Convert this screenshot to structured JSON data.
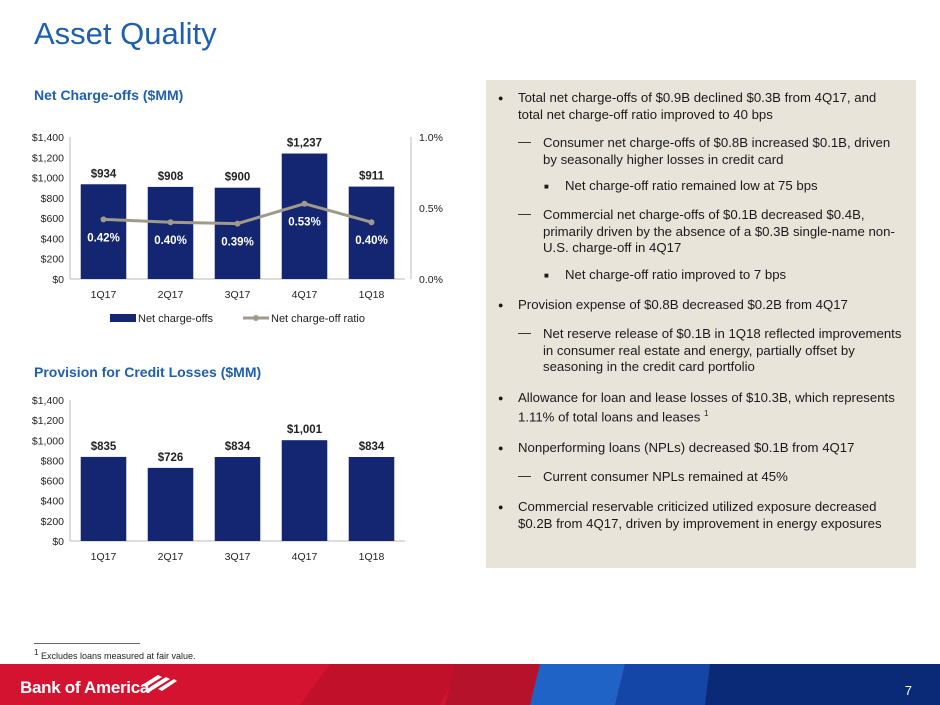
{
  "title": "Asset Quality",
  "chart1_title": "Net Charge-offs ($MM)",
  "chart2_title": "Provision for Credit Losses ($MM)",
  "colors": {
    "bar": "#142672",
    "line": "#a09a8c",
    "title": "#1f5fae",
    "panel": "#e9e4da"
  },
  "chart_data": [
    {
      "type": "bar",
      "title": "Net Charge-offs ($MM)",
      "categories": [
        "1Q17",
        "2Q17",
        "3Q17",
        "4Q17",
        "1Q18"
      ],
      "series": [
        {
          "name": "Net charge-offs",
          "values": [
            934,
            908,
            900,
            1237,
            911
          ],
          "labels": [
            "$934",
            "$908",
            "$900",
            "$1,237",
            "$911"
          ]
        },
        {
          "name": "Net charge-off ratio",
          "type": "line",
          "axis": "right",
          "values": [
            0.42,
            0.4,
            0.39,
            0.53,
            0.4
          ],
          "labels": [
            "0.42%",
            "0.40%",
            "0.39%",
            "0.53%",
            "0.40%"
          ]
        }
      ],
      "ylim": [
        0,
        1400
      ],
      "yticks": [
        "$0",
        "$200",
        "$400",
        "$600",
        "$800",
        "$1,000",
        "$1,200",
        "$1,400"
      ],
      "y2lim": [
        0,
        1.0
      ],
      "y2ticks": [
        "0.0%",
        "0.5%",
        "1.0%"
      ],
      "legend": "bottom"
    },
    {
      "type": "bar",
      "title": "Provision for Credit Losses ($MM)",
      "categories": [
        "1Q17",
        "2Q17",
        "3Q17",
        "4Q17",
        "1Q18"
      ],
      "series": [
        {
          "values": [
            835,
            726,
            834,
            1001,
            834
          ],
          "labels": [
            "$835",
            "$726",
            "$834",
            "$1,001",
            "$834"
          ]
        }
      ],
      "ylim": [
        0,
        1400
      ],
      "yticks": [
        "$0",
        "$200",
        "$400",
        "$600",
        "$800",
        "$1,000",
        "$1,200",
        "$1,400"
      ]
    }
  ],
  "bullets": [
    {
      "level": 1,
      "text": "Total net charge-offs of $0.9B declined $0.3B from 4Q17, and total net charge-off ratio improved to 40 bps"
    },
    {
      "level": 2,
      "text": "Consumer net charge-offs of $0.8B increased $0.1B, driven by seasonally higher losses in credit card"
    },
    {
      "level": 3,
      "text": "Net charge-off ratio remained low at 75 bps"
    },
    {
      "level": 2,
      "text": "Commercial net charge-offs of $0.1B decreased $0.4B, primarily driven by the absence of a $0.3B single-name non-U.S. charge-off in 4Q17"
    },
    {
      "level": 3,
      "text": "Net charge-off ratio improved to 7 bps"
    },
    {
      "level": 1,
      "text": "Provision expense of $0.8B decreased $0.2B from 4Q17"
    },
    {
      "level": 2,
      "text": "Net reserve release of $0.1B in 1Q18 reflected improvements in consumer real estate and energy, partially offset by seasoning in the credit card portfolio"
    },
    {
      "level": 1,
      "text": "Allowance for loan and lease losses of $10.3B, which represents 1.11% of total loans and leases",
      "sup": "1"
    },
    {
      "level": 1,
      "text": "Nonperforming loans (NPLs) decreased $0.1B from 4Q17"
    },
    {
      "level": 2,
      "text": "Current consumer NPLs remained at 45%"
    },
    {
      "level": 1,
      "text": "Commercial reservable criticized utilized exposure decreased $0.2B from 4Q17, driven by improvement in energy exposures"
    }
  ],
  "footnote": {
    "marker": "1",
    "text": " Excludes loans measured at fair value."
  },
  "logo_text": "Bank of America",
  "page_number": "7"
}
